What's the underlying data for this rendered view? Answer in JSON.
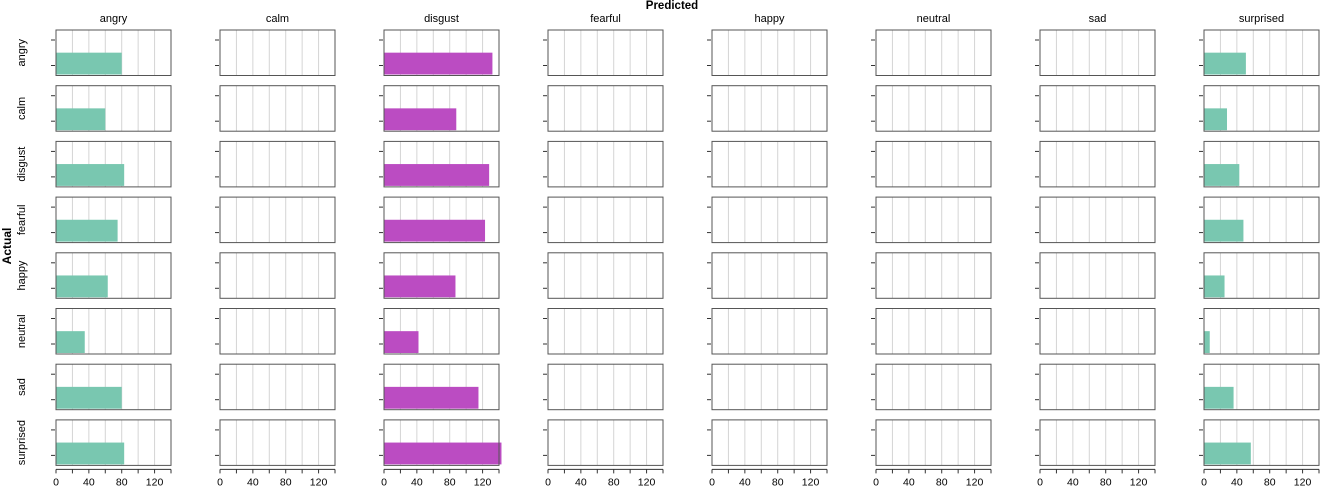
{
  "chart_data": {
    "type": "bar",
    "orientation": "horizontal",
    "title": "Predicted",
    "ylabel": "Actual",
    "predicted_classes": [
      "angry",
      "calm",
      "disgust",
      "fearful",
      "happy",
      "neutral",
      "sad",
      "surprised"
    ],
    "actual_classes": [
      "angry",
      "calm",
      "disgust",
      "fearful",
      "happy",
      "neutral",
      "sad",
      "surprised"
    ],
    "x_ticks": [
      0,
      40,
      80,
      120
    ],
    "xlim": [
      0,
      140
    ],
    "grid": true,
    "series": [
      {
        "predicted": "angry",
        "color": "#79c7b0",
        "values": [
          80,
          60,
          83,
          75,
          63,
          35,
          80,
          83
        ]
      },
      {
        "predicted": "calm",
        "color": "#79c7b0",
        "values": [
          0,
          0,
          0,
          0,
          0,
          0,
          0,
          0
        ]
      },
      {
        "predicted": "disgust",
        "color": "#bb4cc2",
        "values": [
          132,
          88,
          128,
          123,
          87,
          42,
          115,
          143
        ]
      },
      {
        "predicted": "fearful",
        "color": "#79c7b0",
        "values": [
          0,
          0,
          0,
          0,
          0,
          0,
          0,
          0
        ]
      },
      {
        "predicted": "happy",
        "color": "#79c7b0",
        "values": [
          0,
          0,
          0,
          0,
          0,
          0,
          0,
          0
        ]
      },
      {
        "predicted": "neutral",
        "color": "#79c7b0",
        "values": [
          0,
          0,
          0,
          0,
          0,
          0,
          0,
          0
        ]
      },
      {
        "predicted": "sad",
        "color": "#79c7b0",
        "values": [
          0,
          0,
          0,
          0,
          0,
          0,
          0,
          0
        ]
      },
      {
        "predicted": "surprised",
        "color": "#79c7b0",
        "values": [
          51,
          28,
          43,
          48,
          25,
          7,
          36,
          57
        ]
      }
    ]
  }
}
